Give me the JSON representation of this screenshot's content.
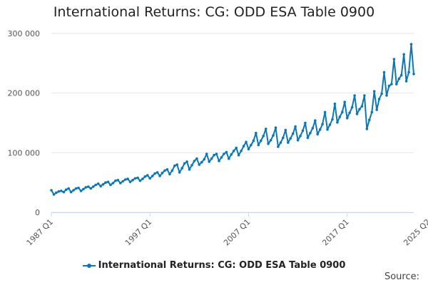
{
  "title": "International Returns: CG: ODD ESA Table 0900",
  "source": "Source:",
  "accent_color": "#0b77b7",
  "chart_data": {
    "type": "line",
    "title": "International Returns: CG: ODD ESA Table 0900",
    "xlabel": "",
    "ylabel": "",
    "x_start": "1987 Q1",
    "x_end": "2025 Q2",
    "ylim": [
      0,
      300000
    ],
    "y_ticks": [
      0,
      100000,
      200000,
      300000
    ],
    "y_tick_labels": [
      "0",
      "100 000",
      "200 000",
      "300 000"
    ],
    "x_ticks": [
      "1987 Q1",
      "1997 Q1",
      "2007 Q1",
      "2017 Q1",
      "2025 Q2"
    ],
    "grid": "horizontal",
    "legend": "bottom-center",
    "series": [
      {
        "name": "International Returns: CG: ODD ESA Table 0900",
        "color": "#0b77b7",
        "values": [
          37000,
          30000,
          33000,
          35000,
          36000,
          34000,
          38000,
          40000,
          34000,
          37000,
          40000,
          41000,
          36000,
          39000,
          42000,
          43000,
          40000,
          43000,
          46000,
          48000,
          44000,
          47000,
          50000,
          51000,
          46000,
          49000,
          53000,
          54000,
          49000,
          52000,
          55000,
          56000,
          51000,
          54000,
          57000,
          58000,
          53000,
          56000,
          60000,
          62000,
          57000,
          61000,
          65000,
          67000,
          61000,
          66000,
          70000,
          72000,
          64000,
          70000,
          78000,
          80000,
          67000,
          74000,
          82000,
          85000,
          72000,
          79000,
          86000,
          90000,
          80000,
          84000,
          89000,
          98000,
          85000,
          90000,
          96000,
          98000,
          86000,
          92000,
          98000,
          101000,
          90000,
          97000,
          103000,
          108000,
          96000,
          103000,
          111000,
          118000,
          106000,
          113000,
          120000,
          133000,
          113000,
          120000,
          128000,
          140000,
          115000,
          121000,
          129000,
          142000,
          110000,
          117000,
          125000,
          138000,
          117000,
          124000,
          132000,
          144000,
          121000,
          128000,
          137000,
          150000,
          125000,
          133000,
          141000,
          154000,
          131000,
          139000,
          148000,
          168000,
          139000,
          147000,
          156000,
          182000,
          151000,
          160000,
          168000,
          185000,
          158000,
          167000,
          176000,
          196000,
          165000,
          173000,
          178000,
          196000,
          140000,
          155000,
          168000,
          203000,
          172000,
          190000,
          199000,
          235000,
          196000,
          212000,
          215000,
          257000,
          215000,
          224000,
          230000,
          265000,
          220000,
          235000,
          282000,
          232000
        ]
      }
    ]
  }
}
